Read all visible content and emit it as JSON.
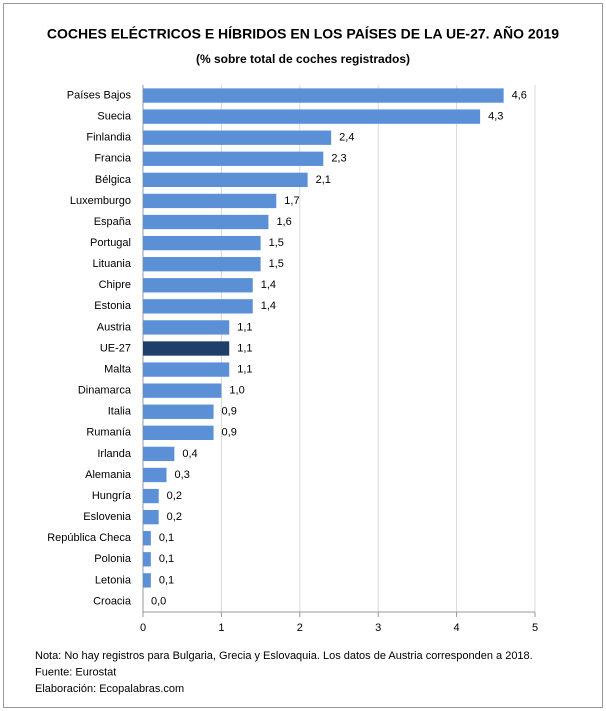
{
  "chart_data": {
    "type": "hbar",
    "title": "COCHES ELÉCTRICOS E HÍBRIDOS EN LOS PAÍSES DE LA UE-27. AÑO 2019",
    "subtitle": "(% sobre total de coches registrados)",
    "categories": [
      "Países Bajos",
      "Suecia",
      "Finlandia",
      "Francia",
      "Bélgica",
      "Luxemburgo",
      "España",
      "Portugal",
      "Lituania",
      "Chipre",
      "Estonia",
      "Austria",
      "UE-27",
      "Malta",
      "Dinamarca",
      "Italia",
      "Rumanía",
      "Irlanda",
      "Alemania",
      "Hungría",
      "Eslovenia",
      "República Checa",
      "Polonia",
      "Letonia",
      "Croacia"
    ],
    "values": [
      4.6,
      4.3,
      2.4,
      2.3,
      2.1,
      1.7,
      1.6,
      1.5,
      1.5,
      1.4,
      1.4,
      1.1,
      1.1,
      1.1,
      1.0,
      0.9,
      0.9,
      0.4,
      0.3,
      0.2,
      0.2,
      0.1,
      0.1,
      0.1,
      0.0
    ],
    "value_labels": [
      "4,6",
      "4,3",
      "2,4",
      "2,3",
      "2,1",
      "1,7",
      "1,6",
      "1,5",
      "1,5",
      "1,4",
      "1,4",
      "1,1",
      "1,1",
      "1,1",
      "1,0",
      "0,9",
      "0,9",
      "0,4",
      "0,3",
      "0,2",
      "0,2",
      "0,1",
      "0,1",
      "0,1",
      "0,0"
    ],
    "colors": [
      "#5b8fd6",
      "#5b8fd6",
      "#5b8fd6",
      "#5b8fd6",
      "#5b8fd6",
      "#5b8fd6",
      "#5b8fd6",
      "#5b8fd6",
      "#5b8fd6",
      "#5b8fd6",
      "#5b8fd6",
      "#5b8fd6",
      "#1f3f6b",
      "#5b8fd6",
      "#5b8fd6",
      "#5b8fd6",
      "#5b8fd6",
      "#5b8fd6",
      "#5b8fd6",
      "#5b8fd6",
      "#5b8fd6",
      "#5b8fd6",
      "#5b8fd6",
      "#5b8fd6",
      "#5b8fd6"
    ],
    "xlim": [
      0,
      5
    ],
    "xticks": [
      0,
      1,
      2,
      3,
      4,
      5
    ],
    "grid": true,
    "notes": [
      "Nota: No hay registros para Bulgaria, Grecia y Eslovaquia. Los datos de Austria corresponden a 2018.",
      "Fuente: Eurostat",
      "Elaboración: Ecopalabras.com"
    ]
  }
}
